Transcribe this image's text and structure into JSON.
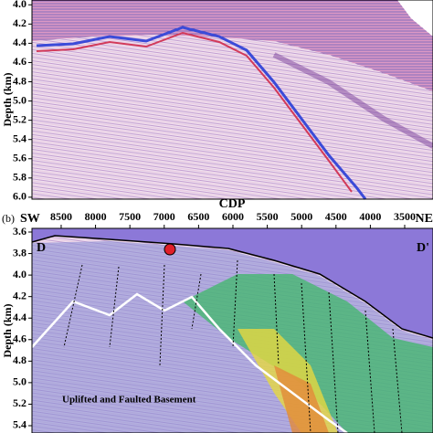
{
  "figure": {
    "panel_a": {
      "y_label": "Depth (km)",
      "ylim": [
        3.95,
        6.02
      ],
      "yticks": [
        {
          "value": 4.0,
          "label": "4.0"
        },
        4.2,
        4.4,
        4.6,
        4.8,
        {
          "value": 5.0,
          "label": "5.0"
        },
        5.2,
        5.4,
        5.6,
        5.8,
        {
          "value": 6.0,
          "label": "6.0"
        }
      ]
    },
    "panel_b": {
      "panel_label": "(b)",
      "left_label": "SW",
      "x_label": "CDP",
      "right_label": "NE",
      "start_label": "D",
      "end_label": "D'",
      "annotation": "Uplifted and Faulted Basement",
      "y_label": "Depth (km)",
      "xlim": [
        8925,
        3088
      ],
      "xticks": [
        8500,
        8000,
        7500,
        7000,
        6500,
        6000,
        5500,
        5000,
        4500,
        4000,
        3500
      ],
      "ylim": [
        3.566,
        5.468
      ],
      "yticks": [
        3.6,
        3.8,
        {
          "value": 4.0,
          "label": "4.0"
        },
        4.2,
        4.4,
        4.6,
        4.8,
        {
          "value": 5.0,
          "label": "5.0"
        },
        5.2,
        5.4
      ]
    }
  }
}
